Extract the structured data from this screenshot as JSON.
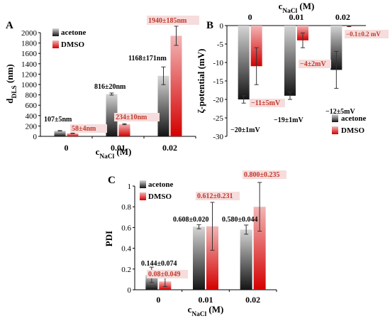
{
  "colors": {
    "acetone_dark": "#141414",
    "acetone_light": "#d6d6d6",
    "dmso_dark": "#d40000",
    "dmso_light": "#f2b6b6",
    "red_label": "#c0392b",
    "red_label_bg": "#f6dcdc"
  },
  "chart_data": [
    {
      "panel": "A",
      "type": "bar",
      "categories": [
        "0",
        "0.01",
        "0.02"
      ],
      "xlabel_main": "c",
      "xlabel_sub": "NaCl",
      "xlabel_unit": " (M)",
      "ylabel_main": "d",
      "ylabel_sub": "DLS",
      "ylabel_unit": " (nm)",
      "ylim": [
        0,
        2000
      ],
      "yticks": [
        "0",
        "200",
        "400",
        "600",
        "800",
        "1000",
        "1200",
        "1400",
        "1600",
        "1800",
        "2000"
      ],
      "legend_position": "top-left",
      "series": [
        {
          "name": "acetone",
          "values": [
            107,
            816,
            1168
          ],
          "errors": [
            5,
            20,
            171
          ],
          "labels": [
            "107±5nm",
            "816±20nm",
            "1168±171nm"
          ]
        },
        {
          "name": "DMSO",
          "values": [
            58,
            234,
            1940
          ],
          "errors": [
            4,
            10,
            185
          ],
          "labels": [
            "58±4nm",
            "234±10nm",
            "1940±185nm"
          ]
        }
      ]
    },
    {
      "panel": "B",
      "type": "bar",
      "categories": [
        "0",
        "0.01",
        "0.02"
      ],
      "xlabel_main": "c",
      "xlabel_sub": "NaCl",
      "xlabel_unit": " (M)",
      "xaxis_position": "top",
      "ylabel": "ζ-potential (mV)",
      "ylim": [
        -30,
        0
      ],
      "yticks": [
        "0",
        "-5",
        "-10",
        "-15",
        "-20",
        "-25",
        "-30"
      ],
      "legend_position": "bottom-right",
      "series": [
        {
          "name": "acetone",
          "values": [
            -20,
            -19,
            -12
          ],
          "errors": [
            1,
            1,
            5
          ],
          "labels": [
            "−20±1mV",
            "−19±1mV",
            "−12±5mV"
          ]
        },
        {
          "name": "DMSO",
          "values": [
            -11,
            -4,
            -0.1
          ],
          "errors": [
            5,
            2,
            0.2
          ],
          "labels": [
            "−11±5mV",
            "−4±2mV",
            "−0.1±0.2 mV"
          ]
        }
      ]
    },
    {
      "panel": "C",
      "type": "bar",
      "categories": [
        "0",
        "0.01",
        "0.02"
      ],
      "xlabel_main": "c",
      "xlabel_sub": "NaCl",
      "xlabel_unit": " (M)",
      "ylabel": "PDI",
      "ylim": [
        0,
        1
      ],
      "yticks": [
        "0",
        "0.2",
        "0.4",
        "0.6",
        "0.8",
        "1"
      ],
      "legend_position": "top-left",
      "series": [
        {
          "name": "acetone",
          "values": [
            0.144,
            0.608,
            0.58
          ],
          "errors": [
            0.074,
            0.02,
            0.044
          ],
          "labels": [
            "0.144±0.074",
            "0.608±0.020",
            "0.580±0.044"
          ]
        },
        {
          "name": "DMSO",
          "values": [
            0.08,
            0.612,
            0.8
          ],
          "errors": [
            0.049,
            0.231,
            0.235
          ],
          "labels": [
            "0.08±0.049",
            "0.612±0.231",
            "0.800±0.235"
          ]
        }
      ]
    }
  ]
}
